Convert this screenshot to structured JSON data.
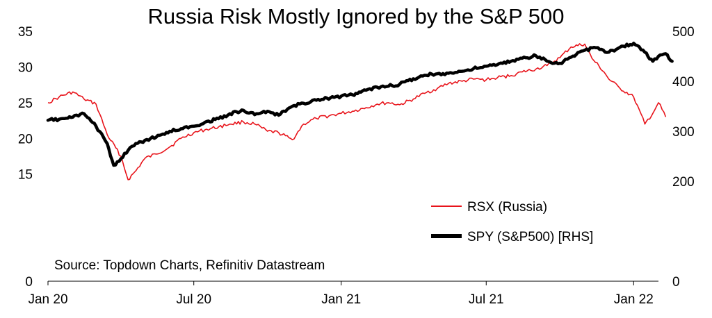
{
  "chart_data": {
    "type": "line",
    "title": "Russia Risk Mostly Ignored by the S&P 500",
    "xlabel": "",
    "ylabel": "",
    "y2label": "",
    "x_tick_labels": [
      "Jan 20",
      "Jul 20",
      "Jan 21",
      "Jul 21",
      "Jan 22"
    ],
    "x_ticks": [
      "2020-01",
      "2020-07",
      "2021-01",
      "2021-07",
      "2022-01"
    ],
    "xlim": [
      "2020-01",
      "2022-02"
    ],
    "ylim_left": [
      0,
      35
    ],
    "ylim_right": [
      0,
      500
    ],
    "left_tick_labels": [
      "0",
      "15",
      "20",
      "25",
      "30",
      "35"
    ],
    "left_ticks": [
      0,
      15,
      20,
      25,
      30,
      35
    ],
    "right_tick_labels": [
      "0",
      "200",
      "300",
      "400",
      "500"
    ],
    "right_ticks": [
      0,
      200,
      300,
      400,
      500
    ],
    "grid": false,
    "legend_placement": "lower-right",
    "annotation": "Source: Topdown Charts, Refinitiv Datastream",
    "series": [
      {
        "name": "RSX (Russia)",
        "axis": "left",
        "color": "#e8141b",
        "points": [
          [
            "2020-01",
            25.0
          ],
          [
            "2020-01-15",
            25.8
          ],
          [
            "2020-02",
            26.5
          ],
          [
            "2020-02-15",
            25.5
          ],
          [
            "2020-03",
            24.8
          ],
          [
            "2020-03-15",
            20.5
          ],
          [
            "2020-04",
            17.5
          ],
          [
            "2020-04-10",
            14.2
          ],
          [
            "2020-04-20",
            15.5
          ],
          [
            "2020-05",
            17.2
          ],
          [
            "2020-05-15",
            17.8
          ],
          [
            "2020-06",
            18.8
          ],
          [
            "2020-06-15",
            20.0
          ],
          [
            "2020-07",
            20.8
          ],
          [
            "2020-07-15",
            21.2
          ],
          [
            "2020-08",
            21.6
          ],
          [
            "2020-08-15",
            22.0
          ],
          [
            "2020-09",
            22.3
          ],
          [
            "2020-09-15",
            22.0
          ],
          [
            "2020-10",
            21.0
          ],
          [
            "2020-10-15",
            20.8
          ],
          [
            "2020-11",
            19.8
          ],
          [
            "2020-11-15",
            22.0
          ],
          [
            "2020-12",
            22.8
          ],
          [
            "2021-01",
            23.5
          ],
          [
            "2021-01-15",
            23.8
          ],
          [
            "2021-02",
            24.3
          ],
          [
            "2021-02-15",
            24.8
          ],
          [
            "2021-03",
            25.0
          ],
          [
            "2021-03-15",
            24.7
          ],
          [
            "2021-04",
            25.5
          ],
          [
            "2021-04-15",
            26.3
          ],
          [
            "2021-05",
            27.0
          ],
          [
            "2021-05-15",
            27.7
          ],
          [
            "2021-06",
            28.0
          ],
          [
            "2021-06-15",
            28.3
          ],
          [
            "2021-07",
            28.2
          ],
          [
            "2021-07-15",
            28.5
          ],
          [
            "2021-08",
            28.8
          ],
          [
            "2021-08-15",
            29.3
          ],
          [
            "2021-09",
            29.7
          ],
          [
            "2021-09-15",
            30.2
          ],
          [
            "2021-10",
            31.3
          ],
          [
            "2021-10-15",
            32.8
          ],
          [
            "2021-11",
            33.2
          ],
          [
            "2021-11-10",
            31.2
          ],
          [
            "2021-11-25",
            29.3
          ],
          [
            "2021-12",
            28.3
          ],
          [
            "2021-12-15",
            27.0
          ],
          [
            "2022-01",
            25.8
          ],
          [
            "2022-01-15",
            22.0
          ],
          [
            "2022-01-25",
            23.5
          ],
          [
            "2022-02",
            25.0
          ],
          [
            "2022-02-10",
            23.0
          ]
        ]
      },
      {
        "name": "SPY (S&P500) [RHS]",
        "axis": "right",
        "color": "#000000",
        "points": [
          [
            "2020-01",
            322
          ],
          [
            "2020-01-15",
            324
          ],
          [
            "2020-02",
            328
          ],
          [
            "2020-02-15",
            335
          ],
          [
            "2020-03",
            310
          ],
          [
            "2020-03-15",
            275
          ],
          [
            "2020-03-23",
            232
          ],
          [
            "2020-04",
            245
          ],
          [
            "2020-04-15",
            270
          ],
          [
            "2020-05",
            282
          ],
          [
            "2020-05-15",
            288
          ],
          [
            "2020-06",
            300
          ],
          [
            "2020-06-15",
            305
          ],
          [
            "2020-07",
            310
          ],
          [
            "2020-07-15",
            318
          ],
          [
            "2020-08",
            325
          ],
          [
            "2020-08-15",
            335
          ],
          [
            "2020-09",
            342
          ],
          [
            "2020-09-15",
            333
          ],
          [
            "2020-10",
            340
          ],
          [
            "2020-10-15",
            332
          ],
          [
            "2020-11",
            350
          ],
          [
            "2020-11-15",
            356
          ],
          [
            "2020-12",
            362
          ],
          [
            "2021-01",
            370
          ],
          [
            "2021-01-15",
            373
          ],
          [
            "2021-02",
            382
          ],
          [
            "2021-02-15",
            388
          ],
          [
            "2021-03",
            390
          ],
          [
            "2021-03-15",
            394
          ],
          [
            "2021-04",
            405
          ],
          [
            "2021-04-15",
            412
          ],
          [
            "2021-05",
            415
          ],
          [
            "2021-05-15",
            416
          ],
          [
            "2021-06",
            420
          ],
          [
            "2021-06-15",
            425
          ],
          [
            "2021-07",
            430
          ],
          [
            "2021-07-15",
            433
          ],
          [
            "2021-08",
            440
          ],
          [
            "2021-08-15",
            446
          ],
          [
            "2021-09",
            451
          ],
          [
            "2021-09-15",
            440
          ],
          [
            "2021-10",
            436
          ],
          [
            "2021-10-15",
            448
          ],
          [
            "2021-11",
            462
          ],
          [
            "2021-11-15",
            467
          ],
          [
            "2021-12",
            458
          ],
          [
            "2021-12-15",
            468
          ],
          [
            "2022-01",
            476
          ],
          [
            "2022-01-15",
            458
          ],
          [
            "2022-01-25",
            440
          ],
          [
            "2022-02",
            450
          ],
          [
            "2022-02-10",
            455
          ],
          [
            "2022-02-18",
            440
          ]
        ]
      }
    ]
  }
}
